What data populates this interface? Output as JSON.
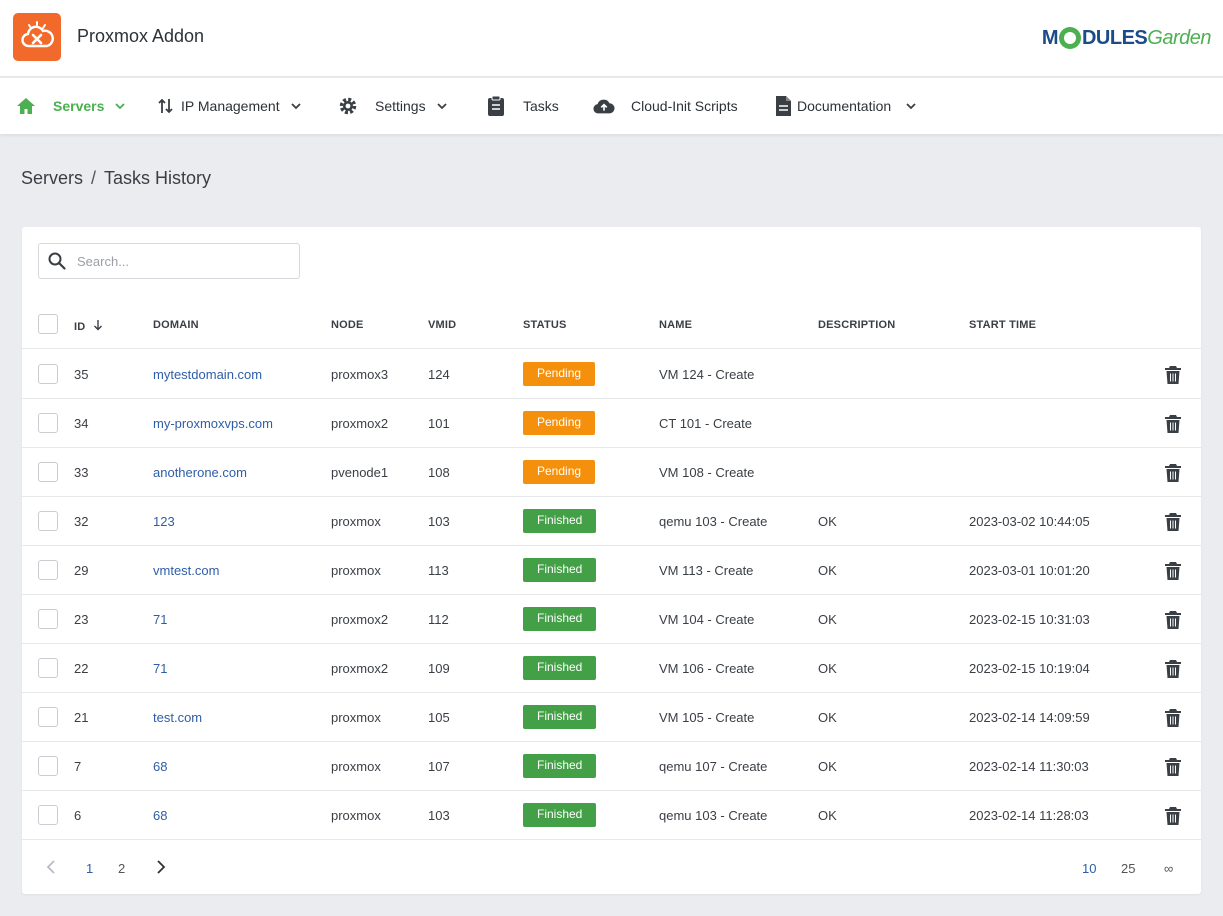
{
  "app": {
    "title": "Proxmox Addon",
    "brand_part1": "M",
    "brand_part2": "DULES",
    "brand_part3": "Garden"
  },
  "nav": {
    "items": [
      {
        "label": "Servers",
        "icon": "home-icon",
        "active": true,
        "dropdown": true
      },
      {
        "label": "IP Management",
        "icon": "sort-arrows-icon",
        "dropdown": true
      },
      {
        "label": "Settings",
        "icon": "gear-icon",
        "dropdown": true
      },
      {
        "label": "Tasks",
        "icon": "clipboard-icon",
        "dropdown": false
      },
      {
        "label": "Cloud-Init Scripts",
        "icon": "cloud-upload-icon",
        "dropdown": false
      },
      {
        "label": "Documentation",
        "icon": "document-icon",
        "dropdown": true
      }
    ]
  },
  "breadcrumb": {
    "parent": "Servers",
    "separator": "/",
    "current": "Tasks History"
  },
  "search": {
    "placeholder": "Search...",
    "value": ""
  },
  "table": {
    "columns": [
      "ID",
      "DOMAIN",
      "NODE",
      "VMID",
      "STATUS",
      "NAME",
      "DESCRIPTION",
      "START TIME"
    ],
    "sort_column": "ID",
    "sort_direction": "desc",
    "rows": [
      {
        "id": "35",
        "domain": "mytestdomain.com",
        "node": "proxmox3",
        "vmid": "124",
        "status": "Pending",
        "name": "VM 124 - Create",
        "description": "",
        "start_time": ""
      },
      {
        "id": "34",
        "domain": "my-proxmoxvps.com",
        "node": "proxmox2",
        "vmid": "101",
        "status": "Pending",
        "name": "CT 101 - Create",
        "description": "",
        "start_time": ""
      },
      {
        "id": "33",
        "domain": "anotherone.com",
        "node": "pvenode1",
        "vmid": "108",
        "status": "Pending",
        "name": "VM 108 - Create",
        "description": "",
        "start_time": ""
      },
      {
        "id": "32",
        "domain": "123",
        "node": "proxmox",
        "vmid": "103",
        "status": "Finished",
        "name": "qemu 103 - Create",
        "description": "OK",
        "start_time": "2023-03-02 10:44:05"
      },
      {
        "id": "29",
        "domain": "vmtest.com",
        "node": "proxmox",
        "vmid": "113",
        "status": "Finished",
        "name": "VM 113 - Create",
        "description": "OK",
        "start_time": "2023-03-01 10:01:20"
      },
      {
        "id": "23",
        "domain": "71",
        "node": "proxmox2",
        "vmid": "112",
        "status": "Finished",
        "name": "VM 104 - Create",
        "description": "OK",
        "start_time": "2023-02-15 10:31:03"
      },
      {
        "id": "22",
        "domain": "71",
        "node": "proxmox2",
        "vmid": "109",
        "status": "Finished",
        "name": "VM 106 - Create",
        "description": "OK",
        "start_time": "2023-02-15 10:19:04"
      },
      {
        "id": "21",
        "domain": "test.com",
        "node": "proxmox",
        "vmid": "105",
        "status": "Finished",
        "name": "VM 105 - Create",
        "description": "OK",
        "start_time": "2023-02-14 14:09:59"
      },
      {
        "id": "7",
        "domain": "68",
        "node": "proxmox",
        "vmid": "107",
        "status": "Finished",
        "name": "qemu 107 - Create",
        "description": "OK",
        "start_time": "2023-02-14 11:30:03"
      },
      {
        "id": "6",
        "domain": "68",
        "node": "proxmox",
        "vmid": "103",
        "status": "Finished",
        "name": "qemu 103 - Create",
        "description": "OK",
        "start_time": "2023-02-14 11:28:03"
      }
    ]
  },
  "pagination": {
    "pages": [
      "1",
      "2"
    ],
    "current_page": "1",
    "page_sizes": [
      "10",
      "25",
      "∞"
    ],
    "current_size": "10"
  },
  "colors": {
    "accent": "#4caf50",
    "logo_bg": "#f26a2b",
    "link": "#2f5ea8",
    "pending": "#f5900c",
    "finished": "#43a047",
    "brand_blue": "#1b4b8a"
  }
}
